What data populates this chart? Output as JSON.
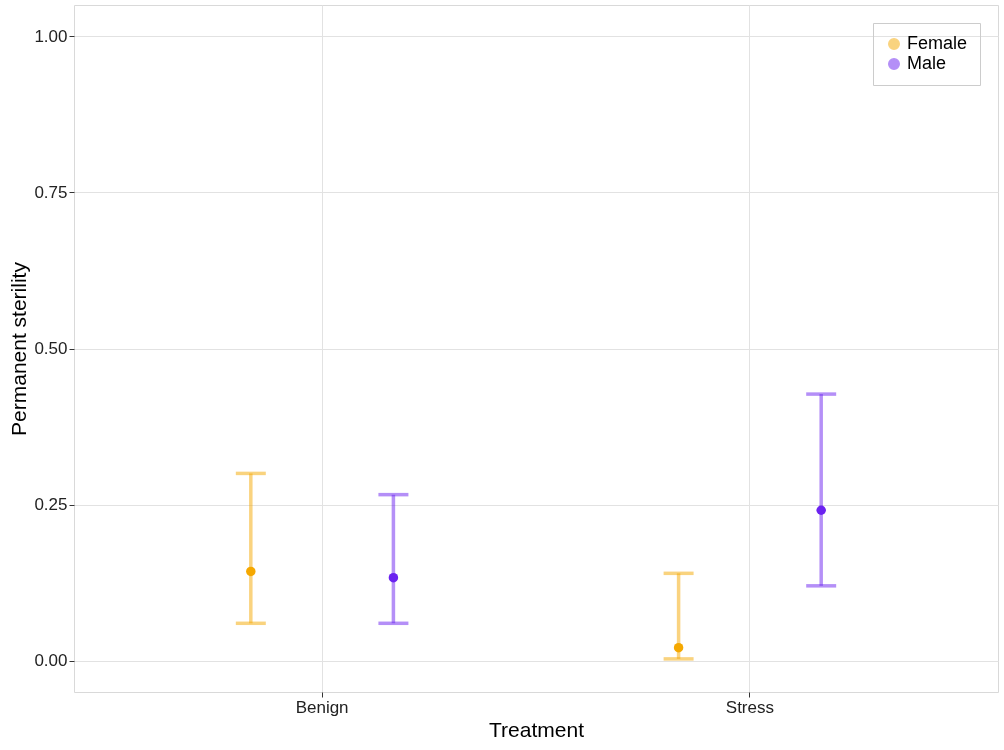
{
  "chart_data": {
    "type": "scatter",
    "xlabel": "Treatment",
    "ylabel": "Permanent sterility",
    "categories": [
      "Benign",
      "Stress"
    ],
    "series": [
      {
        "name": "Female",
        "color": "#f5a800",
        "values": [
          0.143,
          0.021
        ],
        "errors": [
          [
            0.06,
            0.3
          ],
          [
            0.003,
            0.14
          ]
        ]
      },
      {
        "name": "Male",
        "color": "#6b22f0",
        "values": [
          0.133,
          0.241
        ],
        "errors": [
          [
            0.06,
            0.266
          ],
          [
            0.12,
            0.427
          ]
        ]
      }
    ],
    "ylim": [
      -0.05,
      1.05
    ],
    "yticks": [
      {
        "value": 0,
        "label": "0.00"
      },
      {
        "value": 0.25,
        "label": "0.25"
      },
      {
        "value": 0.5,
        "label": "0.50"
      },
      {
        "value": 0.75,
        "label": "0.75"
      },
      {
        "value": 1,
        "label": "1.00"
      }
    ],
    "grid": true,
    "legend": "top right",
    "marker": "circle"
  }
}
